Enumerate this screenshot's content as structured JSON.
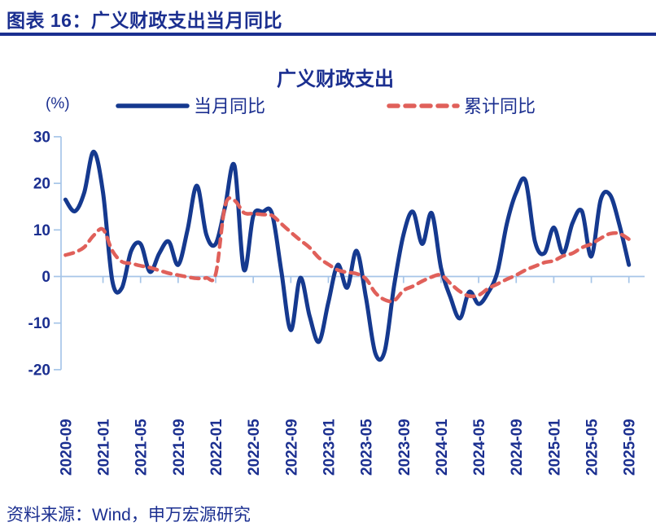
{
  "figure": {
    "caption": "图表 16：广义财政支出当月同比"
  },
  "chart": {
    "title": "广义财政支出",
    "unit_label": "(%)",
    "legend": [
      {
        "label": "当月同比",
        "style": "solid"
      },
      {
        "label": "累计同比",
        "style": "dashed"
      }
    ]
  },
  "colors": {
    "navy_text": "#1B2F90",
    "blue_line": "#15398F",
    "red_line": "#E0605A",
    "axis": "#A6C5E8"
  },
  "chart_data": {
    "type": "line",
    "title": "广义财政支出",
    "ylabel": "(%)",
    "ylim": [
      -20,
      30
    ],
    "yticks": [
      30,
      20,
      10,
      0,
      -10,
      -20
    ],
    "grid": false,
    "legend_position": "top",
    "x_tick_labels": [
      "2020-09",
      "2021-01",
      "2021-05",
      "2021-09",
      "2022-01",
      "2022-05",
      "2022-09",
      "2023-01",
      "2023-05",
      "2023-09",
      "2024-01",
      "2024-05",
      "2024-09",
      "2025-01",
      "2025-05",
      "2025-09"
    ],
    "x": [
      "2020-09",
      "2020-10",
      "2020-11",
      "2020-12",
      "2021-01",
      "2021-02",
      "2021-03",
      "2021-04",
      "2021-05",
      "2021-06",
      "2021-07",
      "2021-08",
      "2021-09",
      "2021-10",
      "2021-11",
      "2021-12",
      "2022-01",
      "2022-02",
      "2022-03",
      "2022-04",
      "2022-05",
      "2022-06",
      "2022-07",
      "2022-08",
      "2022-09",
      "2022-10",
      "2022-11",
      "2022-12",
      "2023-01",
      "2023-02",
      "2023-03",
      "2023-04",
      "2023-05",
      "2023-06",
      "2023-07",
      "2023-08",
      "2023-09",
      "2023-10",
      "2023-11",
      "2023-12",
      "2024-01",
      "2024-02",
      "2024-03",
      "2024-04",
      "2024-05",
      "2024-06",
      "2024-07",
      "2024-08",
      "2024-09",
      "2024-10",
      "2024-11",
      "2024-12",
      "2025-01",
      "2025-02",
      "2025-03",
      "2025-04",
      "2025-05",
      "2025-06",
      "2025-07",
      "2025-08",
      "2025-09"
    ],
    "series": [
      {
        "name": "当月同比",
        "style": "solid",
        "color": "#15398F",
        "values": [
          16.5,
          14.0,
          18.0,
          26.8,
          18.0,
          -1.0,
          -2.5,
          5.5,
          7.0,
          1.0,
          5.0,
          7.5,
          2.5,
          10.0,
          19.5,
          9.0,
          7.0,
          15.0,
          23.8,
          1.5,
          13.0,
          13.9,
          13.5,
          1.0,
          -11.5,
          -0.3,
          -8.5,
          -14.0,
          -5.5,
          2.5,
          -2.4,
          5.5,
          -4.5,
          -16.5,
          -16.0,
          -2.0,
          9.0,
          13.9,
          7.0,
          13.6,
          1.8,
          -4.5,
          -9.0,
          -3.3,
          -5.9,
          -3.5,
          1.0,
          11.3,
          18.0,
          20.5,
          7.5,
          5.0,
          10.5,
          5.0,
          11.5,
          14.0,
          4.3,
          16.5,
          17.5,
          11.0,
          2.5
        ]
      },
      {
        "name": "累计同比",
        "style": "dashed",
        "color": "#E0605A",
        "values": [
          4.6,
          5.2,
          6.3,
          8.8,
          10.1,
          5.5,
          3.2,
          2.8,
          2.3,
          1.9,
          1.3,
          0.7,
          0.3,
          -0.1,
          -0.4,
          -0.3,
          0.5,
          15.2,
          16.3,
          13.7,
          13.5,
          13.3,
          13.1,
          11.3,
          9.5,
          7.8,
          6.2,
          4.0,
          2.6,
          1.4,
          0.9,
          0.6,
          -0.5,
          -3.5,
          -5.0,
          -5.2,
          -3.0,
          -2.1,
          -1.0,
          -0.1,
          0.3,
          -1.5,
          -3.2,
          -4.2,
          -4.0,
          -2.6,
          -1.6,
          -0.6,
          0.3,
          1.4,
          2.2,
          3.0,
          3.4,
          4.4,
          5.0,
          6.2,
          7.0,
          8.2,
          9.2,
          9.2,
          8.0
        ]
      }
    ]
  },
  "footer": {
    "source": "资料来源：Wind，申万宏源研究"
  }
}
